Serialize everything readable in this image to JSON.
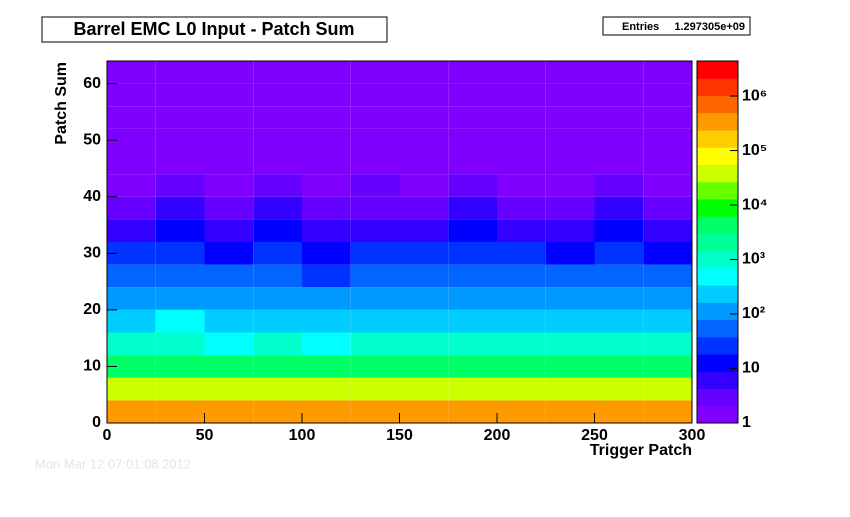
{
  "chart_data": {
    "type": "heatmap",
    "title": "Barrel EMC L0 Input - Patch Sum",
    "stats_label": "Entries",
    "stats_value": "1.297305e+09",
    "x_label": "Trigger Patch",
    "y_label": "Patch Sum",
    "timestamp": "Mon Mar 12 07:01:08 2012",
    "x_bins": [
      0,
      25,
      50,
      75,
      100,
      125,
      150,
      175,
      200,
      225,
      250,
      275,
      300
    ],
    "y_bins": [
      0,
      4,
      8,
      12,
      16,
      20,
      24,
      28,
      32,
      36,
      40,
      44,
      48,
      52,
      56,
      60,
      64
    ],
    "z": [
      [
        300000,
        320000,
        280000,
        310000,
        290000,
        300000,
        305000,
        295000,
        310000,
        285000,
        300000,
        290000
      ],
      [
        40000,
        45000,
        38000,
        42000,
        36000,
        41000,
        39000,
        43000,
        40000,
        37000,
        42000,
        38000
      ],
      [
        4000,
        4500,
        3600,
        4200,
        3500,
        4100,
        3900,
        4300,
        4000,
        3700,
        4200,
        3800
      ],
      [
        800,
        900,
        700,
        850,
        650,
        820,
        780,
        880,
        800,
        720,
        840,
        760
      ],
      [
        300,
        340,
        260,
        320,
        240,
        310,
        290,
        330,
        300,
        270,
        320,
        280
      ],
      [
        120,
        140,
        100,
        130,
        95,
        125,
        115,
        135,
        120,
        105,
        130,
        110
      ],
      [
        50,
        60,
        42,
        55,
        38,
        52,
        48,
        57,
        50,
        44,
        55,
        46
      ],
      [
        20,
        24,
        17,
        22,
        15,
        21,
        19,
        23,
        20,
        18,
        22,
        18
      ],
      [
        8,
        10,
        7,
        9,
        6,
        8.5,
        7.5,
        9.5,
        8,
        7,
        9,
        7.5
      ],
      [
        4,
        5,
        3.5,
        4.5,
        3,
        4.2,
        3.8,
        4.8,
        4,
        3.5,
        4.5,
        3.6
      ],
      [
        2,
        2.5,
        1.8,
        2.2,
        1.6,
        2.1,
        1.9,
        2.4,
        2,
        1.8,
        2.2,
        1.9
      ],
      [
        1.5,
        1.7,
        1.4,
        1.6,
        1.3,
        1.5,
        1.4,
        1.6,
        1.5,
        1.4,
        1.6,
        1.4
      ],
      [
        1.2,
        1.3,
        1.1,
        1.2,
        1.1,
        1.2,
        1.2,
        1.3,
        1.2,
        1.1,
        1.2,
        1.1
      ],
      [
        1,
        1.1,
        1,
        1,
        1,
        1.1,
        1,
        1.1,
        1,
        1,
        1.1,
        1
      ],
      [
        1,
        1,
        1,
        1.1,
        1,
        1,
        1,
        1,
        1.1,
        1,
        1,
        1
      ],
      [
        1.3,
        1.3,
        1.3,
        1.3,
        1.3,
        1.3,
        1.3,
        1.3,
        1.3,
        1.3,
        1.3,
        1.3
      ]
    ],
    "xlim": [
      0,
      300
    ],
    "xticks": [
      0,
      50,
      100,
      150,
      200,
      250,
      300
    ],
    "ylim": [
      0,
      64
    ],
    "yticks": [
      0,
      10,
      20,
      30,
      40,
      50,
      60
    ],
    "zlim": [
      1,
      4400000
    ],
    "zlog": true,
    "zticks": [
      1,
      10,
      {
        "value": 100,
        "label": "10²"
      },
      {
        "value": 1000,
        "label": "10³"
      },
      {
        "value": 10000,
        "label": "10⁴"
      },
      {
        "value": 100000,
        "label": "10⁵"
      },
      {
        "value": 1000000,
        "label": "10⁶"
      }
    ],
    "palette": [
      "#8000ff",
      "#6600ff",
      "#3300ff",
      "#0000ff",
      "#0033ff",
      "#0066ff",
      "#0099ff",
      "#00ccff",
      "#00ffff",
      "#00ffcc",
      "#00ff99",
      "#00ff66",
      "#00ff00",
      "#66ff00",
      "#ccff00",
      "#ffff00",
      "#ffcc00",
      "#ff9900",
      "#ff6600",
      "#ff3300",
      "#ff0000"
    ]
  }
}
